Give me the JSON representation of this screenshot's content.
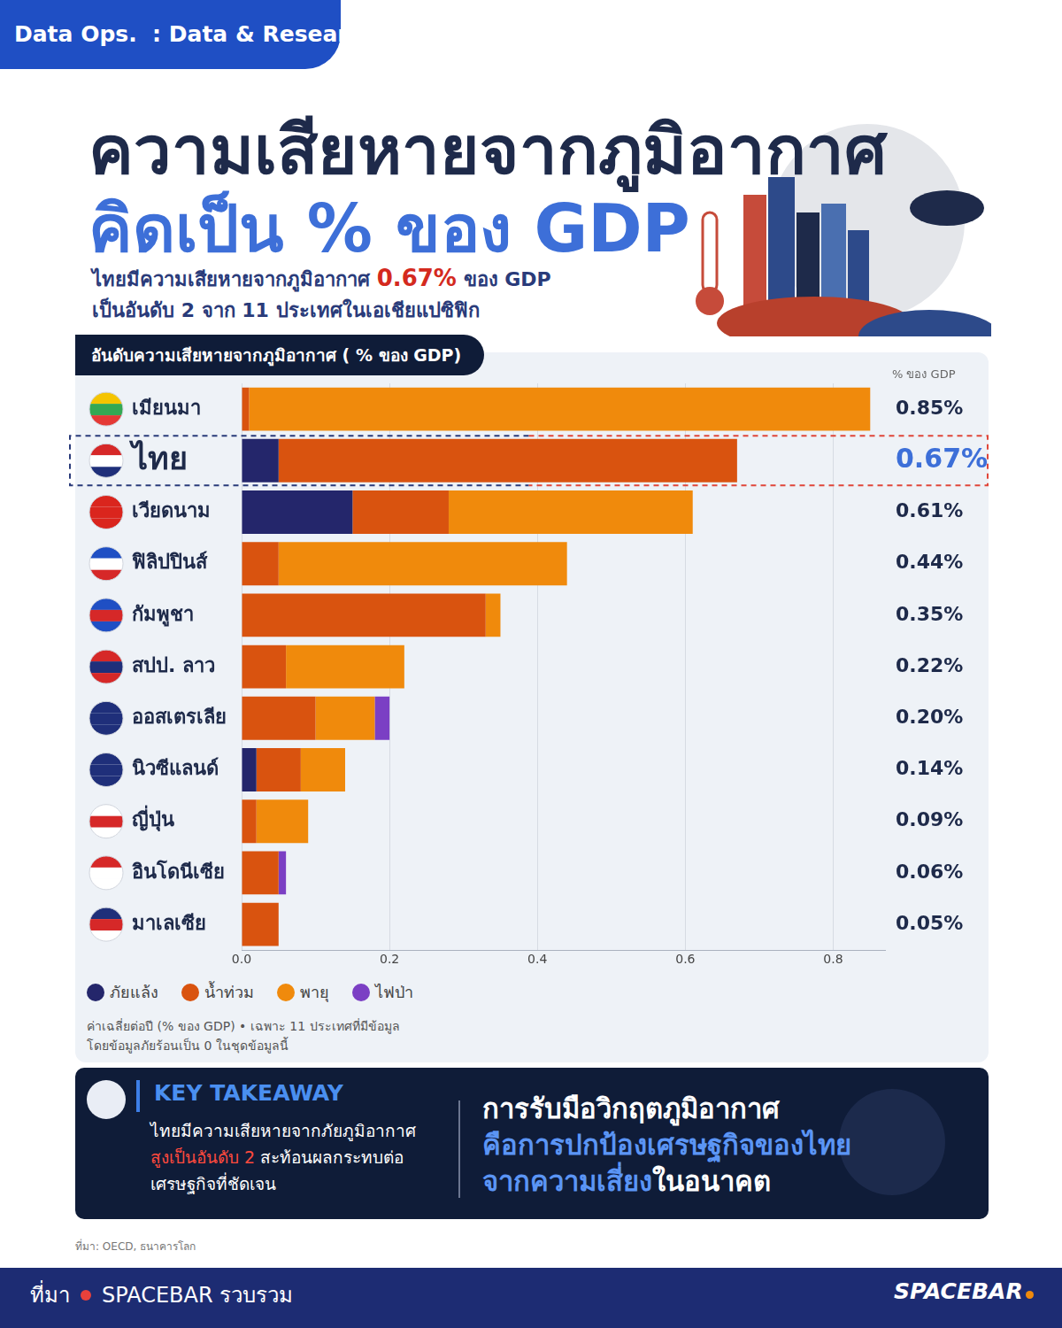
{
  "header": {
    "tag": "Data Ops.  : Data & Research",
    "title_line1": "ความเสียหายจากภูมิอากาศ",
    "title_line2": "คิดเป็น % ของ GDP",
    "subtitle_line1": [
      "ไทยมีความเสียหายจากภูมิอากาศ",
      "0.67%",
      "ของ GDP"
    ],
    "subtitle_line2": "เป็นอันดับ 2 จาก 11 ประเทศในเอเชียแปซิฟิก"
  },
  "chart_data": {
    "type": "bar",
    "title": "อันดับความเสียหายจากภูมิอากาศ ( % ของ GDP)",
    "orientation": "horizontal",
    "stacked": true,
    "grid": true,
    "legend": "bottom",
    "categories": [
      "เมียนมา",
      "ไทย",
      "เวียดนาม",
      "ฟิลิปปินส์",
      "กัมพูชา",
      "สปป. ลาว",
      "ออสเตรเลีย",
      "นิวซีแลนด์",
      "ญี่ปุ่น",
      "อินโดนีเซีย",
      "มาเลเซีย"
    ],
    "series": [
      {
        "name": "ภัยแล้ง",
        "color": "#24266b",
        "values": [
          0,
          0.05,
          0.15,
          0,
          0,
          0,
          0,
          0.02,
          0,
          0,
          0
        ]
      },
      {
        "name": "น้ำท่วม",
        "color": "#d9530f",
        "values": [
          0.01,
          0.62,
          0.13,
          0.05,
          0.33,
          0.06,
          0.1,
          0.06,
          0.02,
          0.05,
          0.05
        ]
      },
      {
        "name": "พายุ",
        "color": "#f08a0c",
        "values": [
          0.84,
          0,
          0.33,
          0.39,
          0.02,
          0.16,
          0.08,
          0.06,
          0.07,
          0,
          0
        ]
      },
      {
        "name": "ไฟป่า",
        "color": "#7b3fc4",
        "values": [
          0,
          0,
          0,
          0,
          0,
          0,
          0.02,
          0,
          0,
          0.01,
          0
        ]
      }
    ],
    "xlim": [
      0,
      0.87
    ],
    "xticks": [
      {
        "value": 0,
        "label": "0.0"
      },
      0.2,
      0.4,
      0.6,
      0.8
    ],
    "totals_header": "% ของ GDP",
    "total_labels": [
      "0.85%",
      "0.67%",
      "0.61%",
      "0.44%",
      "0.35%",
      "0.22%",
      "0.20%",
      "0.14%",
      "0.09%",
      "0.06%",
      "0.05%"
    ],
    "notes": [
      "ค่าเฉลี่ยต่อปี (% ของ GDP) • เฉพาะ 11 ประเทศที่มีข้อมูล",
      "โดยข้อมูลภัยร้อนเป็น 0 ในชุดข้อมูลนี้"
    ]
  },
  "key_takeaway": {
    "title": "KEY TAKEAWAY",
    "body_lines": [
      [
        "ไทยมีความเสียหายจากภัยภูมิอากาศ"
      ],
      [
        "สูงเป็นอันดับ 2",
        " สะท้อนผลกระทบต่อ"
      ],
      [
        "เศรษฐกิจที่ชัดเจน"
      ]
    ],
    "message_lines": [
      [
        "การรับมือวิกฤตภูมิอากาศ"
      ],
      [
        "คือการปกป้องเศรษฐกิจของไทย"
      ],
      [
        "จากความเสี่ยง",
        "ในอนาคต"
      ]
    ]
  },
  "source": "ที่มา: OECD, ธนาคารโลก",
  "footer": {
    "source_label": "ที่มา",
    "credit": "SPACEBAR รวบรวม",
    "brand": "SPACEBAR"
  }
}
